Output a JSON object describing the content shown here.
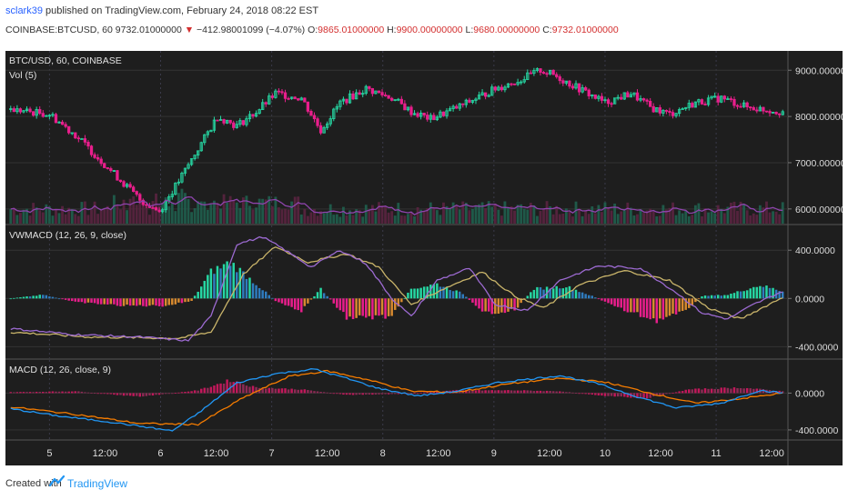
{
  "header": {
    "user": "sclark39",
    "published": "published on TradingView.com, February 24, 2018 08:22 EST",
    "symbol": "COINBASE:BTCUSD, 60",
    "price": "9732.01000000",
    "arrow": "▼",
    "change": "−412.98001099 (−4.07%)",
    "o_label": "O:",
    "o_value": "9865.01000000",
    "h_label": "H:",
    "h_value": "9900.00000000",
    "l_label": "L:",
    "l_value": "9680.00000000",
    "c_label": "C:",
    "c_value": "9732.01000000"
  },
  "footer": {
    "created": "Created with",
    "brand": "TradingView"
  },
  "colors": {
    "bg": "#1e1e1e",
    "grid": "#333333",
    "up": "#26d7a3",
    "down": "#e91e8c",
    "hist_up_strong": "#26d7a3",
    "hist_up_weak": "#2f7cbf",
    "hist_down_strong": "#e91e8c",
    "hist_down_weak": "#d88a2f",
    "macd_line": "#2196f3",
    "signal_line": "#f57c00",
    "vwmacd_line": "#9c6ad1",
    "vwsignal_line": "#c9b46a",
    "vol_ma": "#8e44ad"
  },
  "chart_data": [
    {
      "type": "candlestick",
      "title": "BTC/USD, 60, COINBASE",
      "overlay_label": "Vol (5)",
      "ylim": [
        5800,
        9300
      ],
      "yticks": [
        9000,
        8000,
        7000,
        6000
      ],
      "ytick_labels": [
        "9000.00000000",
        "8000.00000000",
        "7000.00000000",
        "6000.00000000"
      ],
      "x_labels": [
        "5",
        "12:00",
        "6",
        "12:00",
        "7",
        "12:00",
        "8",
        "12:00",
        "9",
        "12:00",
        "10",
        "12:00",
        "11",
        "12:00"
      ],
      "anchors": [
        [
          0,
          8150
        ],
        [
          12,
          8050
        ],
        [
          20,
          7600
        ],
        [
          30,
          6900
        ],
        [
          40,
          6200
        ],
        [
          46,
          5950
        ],
        [
          52,
          6600
        ],
        [
          58,
          7300
        ],
        [
          64,
          8000
        ],
        [
          70,
          7800
        ],
        [
          76,
          8100
        ],
        [
          82,
          8500
        ],
        [
          90,
          8400
        ],
        [
          96,
          7700
        ],
        [
          102,
          8300
        ],
        [
          110,
          8600
        ],
        [
          118,
          8400
        ],
        [
          124,
          8100
        ],
        [
          130,
          7950
        ],
        [
          140,
          8250
        ],
        [
          150,
          8600
        ],
        [
          158,
          8800
        ],
        [
          164,
          9000
        ],
        [
          168,
          8900
        ],
        [
          176,
          8600
        ],
        [
          184,
          8300
        ],
        [
          192,
          8500
        ],
        [
          198,
          8200
        ],
        [
          204,
          8050
        ],
        [
          212,
          8300
        ],
        [
          220,
          8400
        ],
        [
          228,
          8200
        ],
        [
          239,
          8100
        ]
      ],
      "volume_ylim": [
        0,
        1.0
      ]
    },
    {
      "type": "line+histogram",
      "title": "VWMACD (12, 26, 9, close)",
      "ylim": [
        -450,
        560
      ],
      "yticks": [
        400,
        0,
        -400
      ],
      "ytick_labels": [
        "400.0000",
        "0.0000",
        "-400.0000"
      ],
      "line_anchors": [
        [
          0,
          -250
        ],
        [
          20,
          -300
        ],
        [
          40,
          -320
        ],
        [
          55,
          -350
        ],
        [
          62,
          -150
        ],
        [
          70,
          450
        ],
        [
          78,
          510
        ],
        [
          85,
          400
        ],
        [
          93,
          260
        ],
        [
          102,
          400
        ],
        [
          110,
          290
        ],
        [
          118,
          0
        ],
        [
          124,
          -150
        ],
        [
          132,
          150
        ],
        [
          142,
          250
        ],
        [
          150,
          -50
        ],
        [
          160,
          -100
        ],
        [
          170,
          150
        ],
        [
          182,
          270
        ],
        [
          195,
          250
        ],
        [
          206,
          50
        ],
        [
          214,
          -120
        ],
        [
          222,
          -170
        ],
        [
          230,
          -50
        ],
        [
          239,
          60
        ]
      ],
      "signal_anchors": [
        [
          0,
          -280
        ],
        [
          25,
          -320
        ],
        [
          52,
          -330
        ],
        [
          62,
          -280
        ],
        [
          72,
          200
        ],
        [
          82,
          430
        ],
        [
          92,
          300
        ],
        [
          104,
          370
        ],
        [
          114,
          260
        ],
        [
          124,
          -50
        ],
        [
          134,
          80
        ],
        [
          146,
          220
        ],
        [
          156,
          20
        ],
        [
          165,
          -80
        ],
        [
          176,
          110
        ],
        [
          190,
          230
        ],
        [
          204,
          150
        ],
        [
          216,
          -80
        ],
        [
          226,
          -170
        ],
        [
          239,
          10
        ]
      ],
      "hist_anchors": [
        [
          0,
          0
        ],
        [
          10,
          30
        ],
        [
          20,
          -30
        ],
        [
          35,
          -60
        ],
        [
          48,
          -60
        ],
        [
          56,
          -20
        ],
        [
          62,
          220
        ],
        [
          68,
          300
        ],
        [
          76,
          120
        ],
        [
          82,
          -20
        ],
        [
          90,
          -100
        ],
        [
          96,
          80
        ],
        [
          104,
          -160
        ],
        [
          118,
          -150
        ],
        [
          124,
          80
        ],
        [
          132,
          120
        ],
        [
          140,
          40
        ],
        [
          146,
          -120
        ],
        [
          156,
          -100
        ],
        [
          162,
          80
        ],
        [
          172,
          100
        ],
        [
          180,
          20
        ],
        [
          190,
          -100
        ],
        [
          200,
          -180
        ],
        [
          208,
          -120
        ],
        [
          214,
          20
        ],
        [
          222,
          30
        ],
        [
          232,
          110
        ],
        [
          239,
          60
        ]
      ]
    },
    {
      "type": "line+histogram",
      "title": "MACD (12, 26, close, 9)",
      "ylim": [
        -450,
        300
      ],
      "yticks": [
        0,
        -400
      ],
      "ytick_labels": [
        "0.0000",
        "-400.0000"
      ],
      "line_anchors": [
        [
          0,
          -170
        ],
        [
          15,
          -250
        ],
        [
          30,
          -310
        ],
        [
          50,
          -410
        ],
        [
          58,
          -220
        ],
        [
          70,
          110
        ],
        [
          82,
          210
        ],
        [
          94,
          260
        ],
        [
          104,
          160
        ],
        [
          114,
          50
        ],
        [
          126,
          -30
        ],
        [
          138,
          20
        ],
        [
          150,
          110
        ],
        [
          160,
          150
        ],
        [
          170,
          190
        ],
        [
          182,
          100
        ],
        [
          194,
          -40
        ],
        [
          206,
          -160
        ],
        [
          220,
          -110
        ],
        [
          232,
          30
        ],
        [
          239,
          0
        ]
      ],
      "signal_anchors": [
        [
          0,
          -150
        ],
        [
          20,
          -230
        ],
        [
          40,
          -330
        ],
        [
          58,
          -340
        ],
        [
          72,
          -50
        ],
        [
          86,
          180
        ],
        [
          98,
          240
        ],
        [
          110,
          150
        ],
        [
          124,
          20
        ],
        [
          138,
          10
        ],
        [
          154,
          100
        ],
        [
          170,
          160
        ],
        [
          184,
          120
        ],
        [
          198,
          0
        ],
        [
          212,
          -110
        ],
        [
          226,
          -60
        ],
        [
          239,
          0
        ]
      ],
      "hist_anchors": [
        [
          0,
          10
        ],
        [
          20,
          20
        ],
        [
          40,
          -40
        ],
        [
          58,
          30
        ],
        [
          68,
          140
        ],
        [
          76,
          60
        ],
        [
          90,
          40
        ],
        [
          104,
          -20
        ],
        [
          120,
          -10
        ],
        [
          138,
          30
        ],
        [
          156,
          30
        ],
        [
          170,
          20
        ],
        [
          184,
          -30
        ],
        [
          196,
          -60
        ],
        [
          210,
          40
        ],
        [
          226,
          60
        ],
        [
          239,
          20
        ]
      ]
    }
  ]
}
